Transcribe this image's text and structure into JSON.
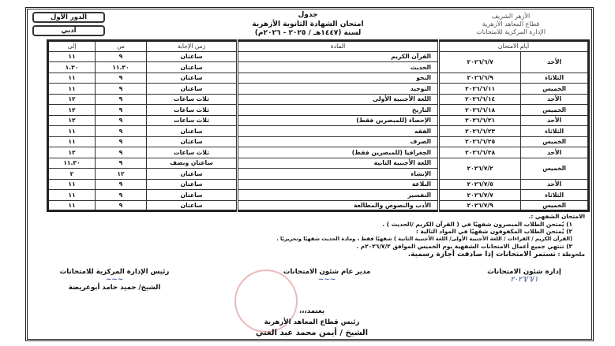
{
  "header": {
    "round": "الدور الأول",
    "branch": "أدبي",
    "title_lines": [
      "جدول",
      "امتحان الشهادة الثانوية الأزهرية",
      "لسنة (١٤٤٧هـ / ٢٠٢٥ - ٢٠٢٦م)"
    ],
    "logo_lines": [
      "الأزهر الشريف",
      "قطاع المعاهد الأزهرية",
      "الإدارة المركزية للامتحانات"
    ]
  },
  "table": {
    "headers": {
      "days": "أيام الامتحان",
      "subject": "المادة",
      "duration": "زمن الإجابة",
      "from": "من",
      "to": "إلى"
    },
    "schedule": [
      {
        "day": "الأحد",
        "date": "٢٠٢٦/٦/٧",
        "subjects": [
          {
            "name": "القرآن الكريم",
            "duration": "ساعتان",
            "from": "٩",
            "to": "١١"
          },
          {
            "name": "الحديث",
            "duration": "ساعتان",
            "from": "١١.٣٠",
            "to": "١.٣٠"
          }
        ]
      },
      {
        "day": "الثلاثاء",
        "date": "٢٠٢٦/٦/٩",
        "subjects": [
          {
            "name": "النحو",
            "duration": "ساعتان",
            "from": "٩",
            "to": "١١"
          }
        ]
      },
      {
        "day": "الخميس",
        "date": "٢٠٢٦/٦/١١",
        "subjects": [
          {
            "name": "التوحيد",
            "duration": "ساعتان",
            "from": "٩",
            "to": "١١"
          }
        ]
      },
      {
        "day": "الأحد",
        "date": "٢٠٢٦/٦/١٤",
        "subjects": [
          {
            "name": "اللغة الأجنبية الأولى",
            "duration": "ثلاث ساعات",
            "from": "٩",
            "to": "١٢"
          }
        ]
      },
      {
        "day": "الخميس",
        "date": "٢٠٢٦/٦/١٨",
        "subjects": [
          {
            "name": "التاريخ",
            "duration": "ثلاث ساعات",
            "from": "٩",
            "to": "١٢"
          }
        ]
      },
      {
        "day": "الأحد",
        "date": "٢٠٢٦/٦/٢١",
        "subjects": [
          {
            "name": "الإحصاء (للمبصرين فقط)",
            "duration": "ثلاث ساعات",
            "from": "٩",
            "to": "١٢"
          }
        ]
      },
      {
        "day": "الثلاثاء",
        "date": "٢٠٢٦/٦/٢٣",
        "subjects": [
          {
            "name": "الفقه",
            "duration": "ساعتان",
            "from": "٩",
            "to": "١١"
          }
        ]
      },
      {
        "day": "الخميس",
        "date": "٢٠٢٦/٦/٢٥",
        "subjects": [
          {
            "name": "الصرف",
            "duration": "ساعتان",
            "from": "٩",
            "to": "١١"
          }
        ]
      },
      {
        "day": "الأحد",
        "date": "٢٠٢٦/٦/٢٨",
        "subjects": [
          {
            "name": "الجغرافيا (للمبصرين فقط)",
            "duration": "ثلاث ساعات",
            "from": "٩",
            "to": "١٢"
          }
        ]
      },
      {
        "day": "الخميس",
        "date": "٢٠٢٦/٧/٢",
        "subjects": [
          {
            "name": "اللغة الأجنبية الثانية",
            "duration": "ساعتان ونصف",
            "from": "٩",
            "to": "١١.٣٠"
          },
          {
            "name": "الإنشاء",
            "duration": "ساعتان",
            "from": "١٢",
            "to": "٢"
          }
        ]
      },
      {
        "day": "الأحد",
        "date": "٢٠٢٦/٧/٥",
        "subjects": [
          {
            "name": "البلاغة",
            "duration": "ساعتان",
            "from": "٩",
            "to": "١١"
          }
        ]
      },
      {
        "day": "الثلاثاء",
        "date": "٢٠٢٦/٧/٧",
        "subjects": [
          {
            "name": "التفسير",
            "duration": "ساعتان",
            "from": "٩",
            "to": "١١"
          }
        ]
      },
      {
        "day": "الخميس",
        "date": "٢٠٢٦/٧/٩",
        "subjects": [
          {
            "name": "الأدب والنصوص والمطالعة",
            "duration": "ساعتان",
            "from": "٩",
            "to": "١١"
          }
        ]
      }
    ]
  },
  "notes": {
    "oral_title": "الامتحان الشفهي :.",
    "item1": "١)   يُمتحن الطلاب المبصرون شفهيًا في ( القرآن الكريم /الحديث ) .",
    "item2": "٢)   يُمتحن الطلاب المكفوفون شفهيًا في المواد التالية :",
    "item2_detail": "(القرآن الكريم / القراءات / اللغة الأجنبية الأولى/ اللغة الأجنبية الثانية ) شفهيًا فقط ، ومادة الحديث شفهيًا وتحريريًا .",
    "item3": "٣)   تنتهي جميع أعمال الامتحانات الشفهية يوم الخميس الموافق ٢٠٢٦/٧/٢م .",
    "note_label": "ملحوظة :",
    "note_text": "تستمر الامتحانات إذا صادفت أجازة رسمية."
  },
  "signatures": {
    "exams_affairs": "إدارة شئون الامتحانات",
    "exams_affairs_sig": "٢٠٢٦/٦/١",
    "general_manager": "مدير عام شئون الامتحانات",
    "central_head": "رئيس الإدارة المركزية للامتحانات",
    "central_head_name": "الشيخ/ حميد حامد أبوعريضة",
    "approved": "يعتمد،،،",
    "sector_head": "رئيس قطاع المعاهد الأزهرية",
    "sector_head_name": "الشيخ / أيمن محمد عبد الغني"
  }
}
